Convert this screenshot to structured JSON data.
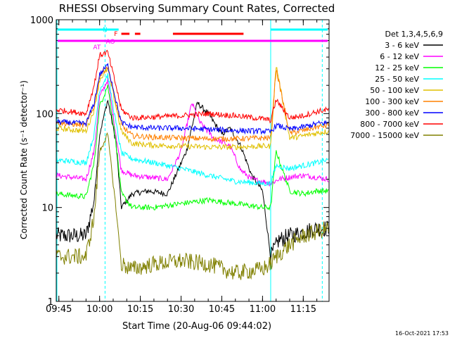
{
  "chart_data": {
    "type": "line",
    "title": "RHESSI Observing Summary Count Rates, Corrected",
    "xlabel": "Start Time (20-Aug-06 09:44:02)",
    "ylabel": "Corrected Count Rate (s⁻¹ detector⁻¹)",
    "x_ticks": [
      "09:45",
      "10:00",
      "10:15",
      "10:30",
      "10:45",
      "11:00",
      "11:15"
    ],
    "y_ticks": [
      "1",
      "10",
      "100",
      "1000"
    ],
    "ylim": [
      1,
      1000
    ],
    "yscale": "log",
    "xlim": [
      "09:44:02",
      "11:24:30"
    ],
    "legend_title": "Det 1,3,4,5,6,9",
    "legend_position": "right",
    "series": [
      {
        "name": "3 - 6 keV",
        "color": "#000000",
        "t": [
          "09:44",
          "09:55",
          "09:58",
          "10:00",
          "10:03",
          "10:06",
          "10:08",
          "10:12",
          "10:18",
          "10:25",
          "10:32",
          "10:36",
          "10:40",
          "10:45",
          "10:48",
          "10:52",
          "10:56",
          "11:00",
          "11:03",
          "11:06",
          "11:10",
          "11:15",
          "11:20",
          "11:24"
        ],
        "v": [
          5,
          5,
          12,
          60,
          140,
          50,
          10,
          14,
          15,
          14,
          40,
          130,
          100,
          60,
          70,
          45,
          22,
          15,
          3,
          4.5,
          5,
          5.5,
          6,
          6
        ]
      },
      {
        "name": "6 - 12 keV",
        "color": "#ff00ff",
        "t": [
          "09:44",
          "09:55",
          "09:58",
          "10:00",
          "10:03",
          "10:06",
          "10:08",
          "10:12",
          "10:18",
          "10:25",
          "10:28",
          "10:30",
          "10:34",
          "10:37",
          "10:42",
          "10:45",
          "10:48",
          "10:52",
          "10:56",
          "11:00",
          "11:03",
          "11:06",
          "11:10",
          "11:15",
          "11:20",
          "11:24"
        ],
        "v": [
          22,
          20,
          40,
          150,
          230,
          60,
          25,
          22,
          21,
          20,
          30,
          40,
          130,
          80,
          55,
          50,
          45,
          25,
          20,
          19,
          18,
          20,
          21,
          22,
          21,
          20
        ]
      },
      {
        "name": "12 - 25 keV",
        "color": "#00ff00",
        "t": [
          "09:44",
          "09:55",
          "09:58",
          "10:00",
          "10:03",
          "10:06",
          "10:08",
          "10:12",
          "10:20",
          "10:30",
          "10:40",
          "10:50",
          "11:00",
          "11:03",
          "11:05",
          "11:10",
          "11:15",
          "11:20",
          "11:24"
        ],
        "v": [
          14,
          13,
          30,
          120,
          200,
          50,
          14,
          10,
          10,
          11,
          12,
          11,
          10,
          10,
          40,
          15,
          14,
          15,
          15
        ]
      },
      {
        "name": "25 - 50 keV",
        "color": "#00ffff",
        "t": [
          "09:44",
          "09:55",
          "09:58",
          "10:00",
          "10:03",
          "10:06",
          "10:08",
          "10:12",
          "10:20",
          "10:30",
          "10:40",
          "10:50",
          "11:00",
          "11:03",
          "11:05",
          "11:10",
          "11:15",
          "11:20",
          "11:24"
        ],
        "v": [
          32,
          30,
          60,
          180,
          260,
          80,
          38,
          33,
          30,
          26,
          22,
          19,
          18,
          18,
          28,
          26,
          28,
          30,
          32
        ]
      },
      {
        "name": "50 - 100 keV",
        "color": "#e0c000",
        "t": [
          "09:44",
          "09:55",
          "09:58",
          "10:00",
          "10:03",
          "10:06",
          "10:08",
          "10:12",
          "10:20",
          "10:30",
          "10:40",
          "10:50",
          "11:00",
          "11:03",
          "11:05",
          "11:10",
          "11:15",
          "11:20",
          "11:24"
        ],
        "v": [
          70,
          65,
          110,
          230,
          300,
          120,
          65,
          48,
          46,
          45,
          44,
          44,
          45,
          45,
          330,
          55,
          58,
          62,
          65
        ]
      },
      {
        "name": "100 - 300 keV",
        "color": "#ff8000",
        "t": [
          "09:44",
          "09:55",
          "09:58",
          "10:00",
          "10:03",
          "10:06",
          "10:08",
          "10:12",
          "10:20",
          "10:30",
          "10:40",
          "10:50",
          "11:00",
          "11:03",
          "11:05",
          "11:10",
          "11:15",
          "11:20",
          "11:24"
        ],
        "v": [
          80,
          75,
          120,
          250,
          320,
          130,
          75,
          58,
          56,
          55,
          54,
          54,
          55,
          55,
          300,
          62,
          66,
          72,
          75
        ]
      },
      {
        "name": "300 - 800 keV",
        "color": "#0000ff",
        "t": [
          "09:44",
          "09:55",
          "09:58",
          "10:00",
          "10:03",
          "10:06",
          "10:08",
          "10:12",
          "10:20",
          "10:30",
          "10:40",
          "10:50",
          "11:00",
          "11:03",
          "11:05",
          "11:10",
          "11:15",
          "11:20",
          "11:24"
        ],
        "v": [
          82,
          78,
          130,
          260,
          330,
          140,
          80,
          72,
          70,
          70,
          68,
          66,
          65,
          64,
          75,
          68,
          72,
          78,
          80
        ]
      },
      {
        "name": "800 - 7000 keV",
        "color": "#ff0000",
        "t": [
          "09:44",
          "09:55",
          "09:58",
          "10:00",
          "10:03",
          "10:06",
          "10:08",
          "10:12",
          "10:20",
          "10:30",
          "10:40",
          "10:50",
          "11:00",
          "11:03",
          "11:05",
          "11:10",
          "11:15",
          "11:20",
          "11:24"
        ],
        "v": [
          110,
          100,
          200,
          420,
          450,
          200,
          110,
          90,
          92,
          95,
          100,
          95,
          88,
          85,
          140,
          90,
          95,
          105,
          110
        ]
      },
      {
        "name": "7000 - 15000 keV",
        "color": "#808000",
        "t": [
          "09:44",
          "09:55",
          "09:58",
          "10:00",
          "10:03",
          "10:06",
          "10:08",
          "10:12",
          "10:20",
          "10:30",
          "10:40",
          "10:50",
          "11:00",
          "11:03",
          "11:05",
          "11:10",
          "11:15",
          "11:20",
          "11:24"
        ],
        "v": [
          3,
          3,
          8,
          40,
          60,
          10,
          2.5,
          2.2,
          2.5,
          2.7,
          2.5,
          2,
          2.2,
          2.5,
          3,
          4,
          5,
          5.5,
          6
        ]
      }
    ],
    "annotations": [
      {
        "text": "N",
        "color": "#00ffff"
      },
      {
        "text": "F",
        "color": "#ff0000"
      },
      {
        "text": "AO",
        "color": "#ff00ff"
      },
      {
        "text": "AT",
        "color": "#ff00ff"
      }
    ]
  },
  "footer": {
    "date_stamp": "16-Oct-2021 17:53"
  }
}
